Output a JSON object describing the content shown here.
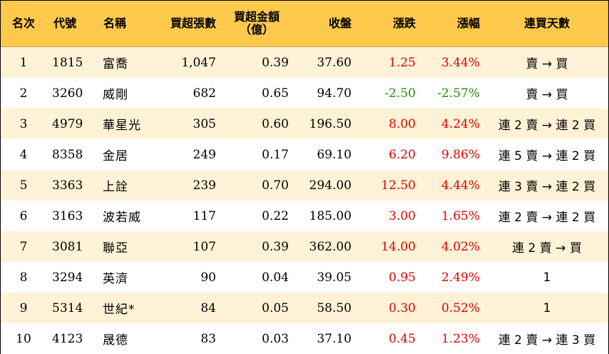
{
  "colors": {
    "header_bg": "#ffc94b",
    "stripe_bg": "#fff2d6",
    "up": "#e00000",
    "down": "#2a8a00"
  },
  "headers": {
    "rank": "名次",
    "code": "代號",
    "name": "名稱",
    "net_buy_lots": "買超張數",
    "net_buy_amount_line1": "買超金額",
    "net_buy_amount_line2": "（億）",
    "close": "收盤",
    "change": "漲跌",
    "change_pct": "漲幅",
    "consecutive_days": "連買天數"
  },
  "rows": [
    {
      "rank": "1",
      "code": "1815",
      "name": "富喬",
      "lots": "1,047",
      "amount": "0.39",
      "close": "37.60",
      "change": "1.25",
      "pct": "3.44%",
      "trend": "up",
      "days": "賣 → 買"
    },
    {
      "rank": "2",
      "code": "3260",
      "name": "威剛",
      "lots": "682",
      "amount": "0.65",
      "close": "94.70",
      "change": "-2.50",
      "pct": "-2.57%",
      "trend": "down",
      "days": "賣 → 買"
    },
    {
      "rank": "3",
      "code": "4979",
      "name": "華星光",
      "lots": "305",
      "amount": "0.60",
      "close": "196.50",
      "change": "8.00",
      "pct": "4.24%",
      "trend": "up",
      "days": "連 2 賣 → 連 2 買"
    },
    {
      "rank": "4",
      "code": "8358",
      "name": "金居",
      "lots": "249",
      "amount": "0.17",
      "close": "69.10",
      "change": "6.20",
      "pct": "9.86%",
      "trend": "up",
      "days": "連 5 賣 → 連 2 買"
    },
    {
      "rank": "5",
      "code": "3363",
      "name": "上詮",
      "lots": "239",
      "amount": "0.70",
      "close": "294.00",
      "change": "12.50",
      "pct": "4.44%",
      "trend": "up",
      "days": "連 3 賣 → 連 2 買"
    },
    {
      "rank": "6",
      "code": "3163",
      "name": "波若威",
      "lots": "117",
      "amount": "0.22",
      "close": "185.00",
      "change": "3.00",
      "pct": "1.65%",
      "trend": "up",
      "days": "連 2 賣 → 連 2 買"
    },
    {
      "rank": "7",
      "code": "3081",
      "name": "聯亞",
      "lots": "107",
      "amount": "0.39",
      "close": "362.00",
      "change": "14.00",
      "pct": "4.02%",
      "trend": "up",
      "days": "連 2 賣 → 買"
    },
    {
      "rank": "8",
      "code": "3294",
      "name": "英濟",
      "lots": "90",
      "amount": "0.04",
      "close": "39.05",
      "change": "0.95",
      "pct": "2.49%",
      "trend": "up",
      "days": "1"
    },
    {
      "rank": "9",
      "code": "5314",
      "name": "世紀*",
      "lots": "84",
      "amount": "0.05",
      "close": "58.50",
      "change": "0.30",
      "pct": "0.52%",
      "trend": "up",
      "days": "1"
    },
    {
      "rank": "10",
      "code": "4123",
      "name": "晟德",
      "lots": "83",
      "amount": "0.03",
      "close": "37.10",
      "change": "0.45",
      "pct": "1.23%",
      "trend": "up",
      "days": "連 2 賣 → 連 3 買"
    }
  ]
}
